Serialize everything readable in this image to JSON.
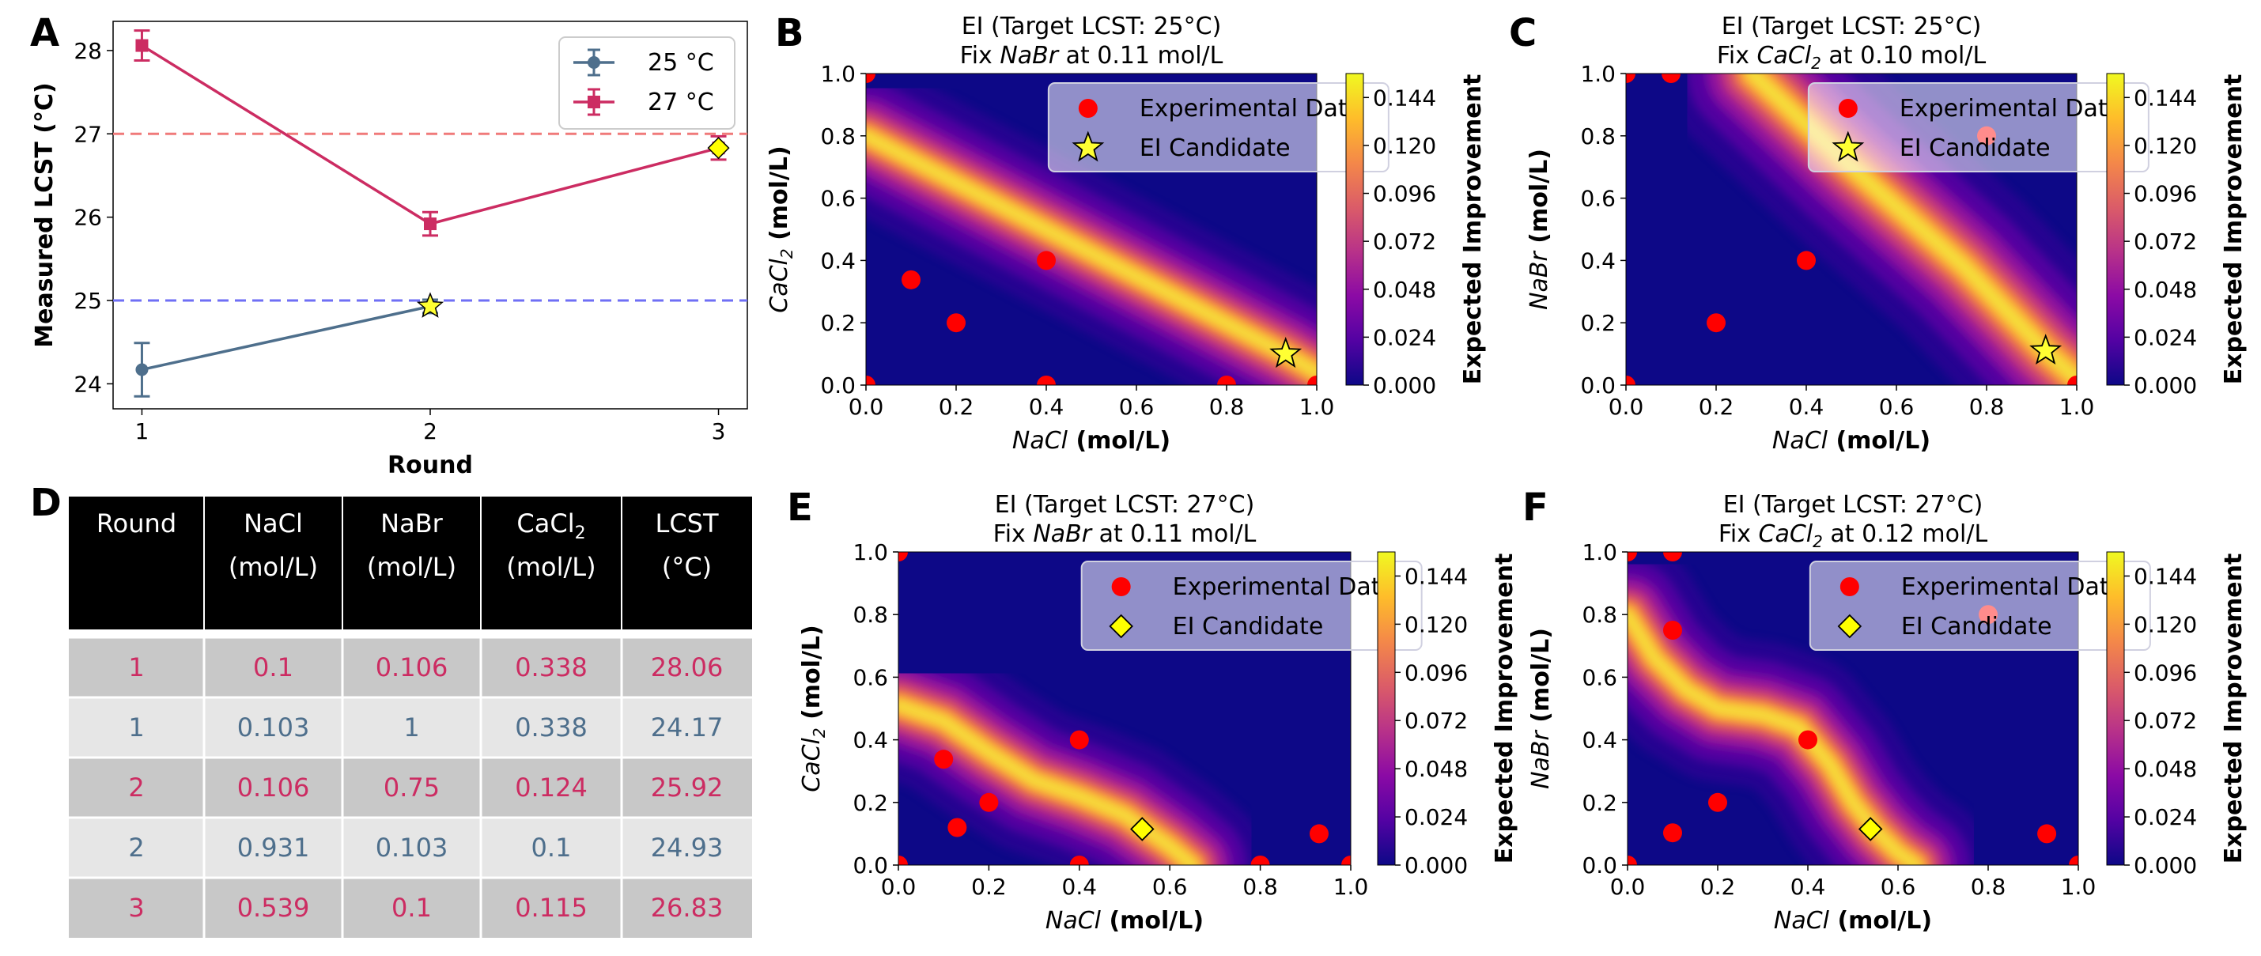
{
  "colors": {
    "t25": "#4e6f8c",
    "t27": "#cc2c62",
    "ref25": "#6f6ff5",
    "ref27": "#f07a7a",
    "exp_point": "#ff0000",
    "star": "#ffff33",
    "diamond": "#ffff00",
    "plot_bg": "#0d0887",
    "header_bg": "#000000",
    "row_dark": "#c8c8c8",
    "row_light": "#e6e6e6"
  },
  "panel_labels": {
    "a": "A",
    "b": "B",
    "c": "C",
    "d": "D",
    "e": "E",
    "f": "F"
  },
  "chart_data": [
    {
      "id": "A",
      "type": "line",
      "xlabel": "Round",
      "ylabel": "Measured LCST (°C)",
      "x": [
        1,
        2,
        3
      ],
      "xlim": [
        0.9,
        3.1
      ],
      "ylim": [
        23.7,
        28.35
      ],
      "yticks": [
        24,
        25,
        26,
        27,
        28
      ],
      "xticks": [
        1,
        2,
        3
      ],
      "reference_lines": [
        25,
        27
      ],
      "legend_position": "upper right",
      "series": [
        {
          "name": "25 °C",
          "x": [
            1,
            2
          ],
          "values": [
            24.17,
            24.93
          ],
          "errors": [
            0.32,
            0.08
          ],
          "marker": "circle"
        },
        {
          "name": "27 °C",
          "x": [
            1,
            2,
            3
          ],
          "values": [
            28.06,
            25.92,
            26.83
          ],
          "errors": [
            0.18,
            0.14,
            0.14
          ],
          "marker": "square"
        }
      ],
      "candidates": [
        {
          "x": 2,
          "y": 24.93,
          "marker": "star"
        },
        {
          "x": 3,
          "y": 26.83,
          "marker": "diamond"
        }
      ]
    },
    {
      "id": "B",
      "type": "heatmap",
      "title_line1": "EI (Target LCST: 25°C)",
      "title_prefix": "Fix ",
      "title_species": "NaBr",
      "title_species_sub": "",
      "title_suffix": " at 0.11 mol/L",
      "xlabel_species": "NaCl",
      "xlabel_species_sub": "",
      "xlabel_unit": " (mol/L)",
      "ylabel_species": "CaCl",
      "ylabel_species_sub": "2",
      "ylabel_unit": " (mol/L)",
      "xlim": [
        0,
        1
      ],
      "ylim": [
        0,
        1
      ],
      "ticks": [
        "0.0",
        "0.2",
        "0.4",
        "0.6",
        "0.8",
        "1.0"
      ],
      "ridge": [
        [
          0,
          0.8
        ],
        [
          0.93,
          0.1
        ],
        [
          1.0,
          0.04
        ]
      ],
      "ridge_width": 0.05,
      "experimental_points": [
        [
          0,
          0
        ],
        [
          0,
          1
        ],
        [
          0.1,
          0.338
        ],
        [
          0.2,
          0.2
        ],
        [
          0.4,
          0.4
        ],
        [
          0.4,
          0
        ],
        [
          0.8,
          0
        ],
        [
          1,
          0
        ]
      ],
      "candidate": {
        "x": 0.931,
        "y": 0.1,
        "marker": "star"
      },
      "legend": [
        "Experimental Data",
        "EI Candidate"
      ],
      "colorbar": {
        "label": "Expected Improvement",
        "max": 0.156,
        "ticks": [
          "0.000",
          "0.024",
          "0.048",
          "0.072",
          "0.096",
          "0.120",
          "0.144"
        ]
      }
    },
    {
      "id": "C",
      "type": "heatmap",
      "title_line1": "EI (Target LCST: 25°C)",
      "title_prefix": "Fix ",
      "title_species": "CaCl",
      "title_species_sub": "2",
      "title_suffix": " at 0.10 mol/L",
      "xlabel_species": "NaCl",
      "xlabel_species_sub": "",
      "xlabel_unit": " (mol/L)",
      "ylabel_species": "NaBr",
      "ylabel_species_sub": "",
      "ylabel_unit": " (mol/L)",
      "xlim": [
        0,
        1
      ],
      "ylim": [
        0,
        1
      ],
      "ticks": [
        "0.0",
        "0.2",
        "0.4",
        "0.6",
        "0.8",
        "1.0"
      ],
      "ridge": [
        [
          0.28,
          1.0
        ],
        [
          0.5,
          0.7
        ],
        [
          0.75,
          0.38
        ],
        [
          0.93,
          0.11
        ],
        [
          1.0,
          0.02
        ]
      ],
      "ridge_width": 0.06,
      "experimental_points": [
        [
          0,
          1
        ],
        [
          0.1,
          1
        ],
        [
          0.8,
          0.8
        ],
        [
          0.4,
          0.4
        ],
        [
          0.2,
          0.2
        ],
        [
          0,
          0
        ],
        [
          1,
          0
        ]
      ],
      "candidate": {
        "x": 0.931,
        "y": 0.11,
        "marker": "star"
      },
      "legend": [
        "Experimental Data",
        "EI Candidate"
      ],
      "colorbar": {
        "label": "Expected Improvement",
        "max": 0.156,
        "ticks": [
          "0.000",
          "0.024",
          "0.048",
          "0.072",
          "0.096",
          "0.120",
          "0.144"
        ]
      }
    },
    {
      "id": "E",
      "type": "heatmap",
      "title_line1": "EI (Target LCST: 27°C)",
      "title_prefix": "Fix ",
      "title_species": "NaBr",
      "title_species_sub": "",
      "title_suffix": " at 0.11 mol/L",
      "xlabel_species": "NaCl",
      "xlabel_species_sub": "",
      "xlabel_unit": " (mol/L)",
      "ylabel_species": "CaCl",
      "ylabel_species_sub": "2",
      "ylabel_unit": " (mol/L)",
      "xlim": [
        0,
        1
      ],
      "ylim": [
        0,
        1
      ],
      "ticks": [
        "0.0",
        "0.2",
        "0.4",
        "0.6",
        "0.8",
        "1.0"
      ],
      "ridge": [
        [
          0,
          0.51
        ],
        [
          0.1,
          0.46
        ],
        [
          0.2,
          0.36
        ],
        [
          0.3,
          0.27
        ],
        [
          0.4,
          0.22
        ],
        [
          0.5,
          0.16
        ],
        [
          0.6,
          0.06
        ],
        [
          0.65,
          0.0
        ]
      ],
      "ridge_width": 0.05,
      "experimental_points": [
        [
          0,
          1
        ],
        [
          0.1,
          0.338
        ],
        [
          0.13,
          0.12
        ],
        [
          0.2,
          0.2
        ],
        [
          0.4,
          0.4
        ],
        [
          0.4,
          0
        ],
        [
          0.8,
          0
        ],
        [
          0.93,
          0.1
        ],
        [
          0,
          0
        ],
        [
          1,
          0
        ]
      ],
      "candidate": {
        "x": 0.539,
        "y": 0.115,
        "marker": "diamond"
      },
      "legend": [
        "Experimental Data",
        "EI Candidate"
      ],
      "colorbar": {
        "label": "Expected Improvement",
        "max": 0.156,
        "ticks": [
          "0.000",
          "0.024",
          "0.048",
          "0.072",
          "0.096",
          "0.120",
          "0.144"
        ]
      }
    },
    {
      "id": "F",
      "type": "heatmap",
      "title_line1": "EI (Target LCST: 27°C)",
      "title_prefix": "Fix ",
      "title_species": "CaCl",
      "title_species_sub": "2",
      "title_suffix": " at 0.12 mol/L",
      "xlabel_species": "NaCl",
      "xlabel_species_sub": "",
      "xlabel_unit": " (mol/L)",
      "ylabel_species": "NaBr",
      "ylabel_species_sub": "",
      "ylabel_unit": " (mol/L)",
      "xlim": [
        0,
        1
      ],
      "ylim": [
        0,
        1
      ],
      "ticks": [
        "0.0",
        "0.2",
        "0.4",
        "0.6",
        "0.8",
        "1.0"
      ],
      "ridge": [
        [
          0,
          0.8
        ],
        [
          0.06,
          0.66
        ],
        [
          0.13,
          0.56
        ],
        [
          0.2,
          0.5
        ],
        [
          0.3,
          0.48
        ],
        [
          0.38,
          0.44
        ],
        [
          0.45,
          0.32
        ],
        [
          0.5,
          0.2
        ],
        [
          0.55,
          0.11
        ],
        [
          0.6,
          0.04
        ],
        [
          0.64,
          0.0
        ]
      ],
      "ridge_width": 0.05,
      "experimental_points": [
        [
          0,
          1
        ],
        [
          0.1,
          1
        ],
        [
          0.1,
          0.75
        ],
        [
          0.8,
          0.8
        ],
        [
          0.4,
          0.4
        ],
        [
          0.2,
          0.2
        ],
        [
          0.1,
          0.103
        ],
        [
          0.93,
          0.1
        ],
        [
          0,
          0
        ],
        [
          1,
          0
        ]
      ],
      "candidate": {
        "x": 0.539,
        "y": 0.115,
        "marker": "diamond"
      },
      "legend": [
        "Experimental Data",
        "EI Candidate"
      ],
      "colorbar": {
        "label": "Expected Improvement",
        "max": 0.156,
        "ticks": [
          "0.000",
          "0.024",
          "0.048",
          "0.072",
          "0.096",
          "0.120",
          "0.144"
        ]
      }
    }
  ],
  "table": {
    "headers": [
      {
        "line1": "Round",
        "line2": ""
      },
      {
        "line1": "NaCl",
        "line2": "(mol/L)"
      },
      {
        "line1": "NaBr",
        "line2": "(mol/L)"
      },
      {
        "line1": "CaCl",
        "line1_sub": "2",
        "line2": "(mol/L)"
      },
      {
        "line1": "LCST",
        "line2": "(°C)"
      }
    ],
    "rows": [
      {
        "cells": [
          "1",
          "0.1",
          "0.106",
          "0.338",
          "28.06"
        ],
        "series": "27 °C"
      },
      {
        "cells": [
          "1",
          "0.103",
          "1",
          "0.338",
          "24.17"
        ],
        "series": "25 °C"
      },
      {
        "cells": [
          "2",
          "0.106",
          "0.75",
          "0.124",
          "25.92"
        ],
        "series": "27 °C"
      },
      {
        "cells": [
          "2",
          "0.931",
          "0.103",
          "0.1",
          "24.93"
        ],
        "series": "25 °C"
      },
      {
        "cells": [
          "3",
          "0.539",
          "0.1",
          "0.115",
          "26.83"
        ],
        "series": "27 °C"
      }
    ]
  }
}
